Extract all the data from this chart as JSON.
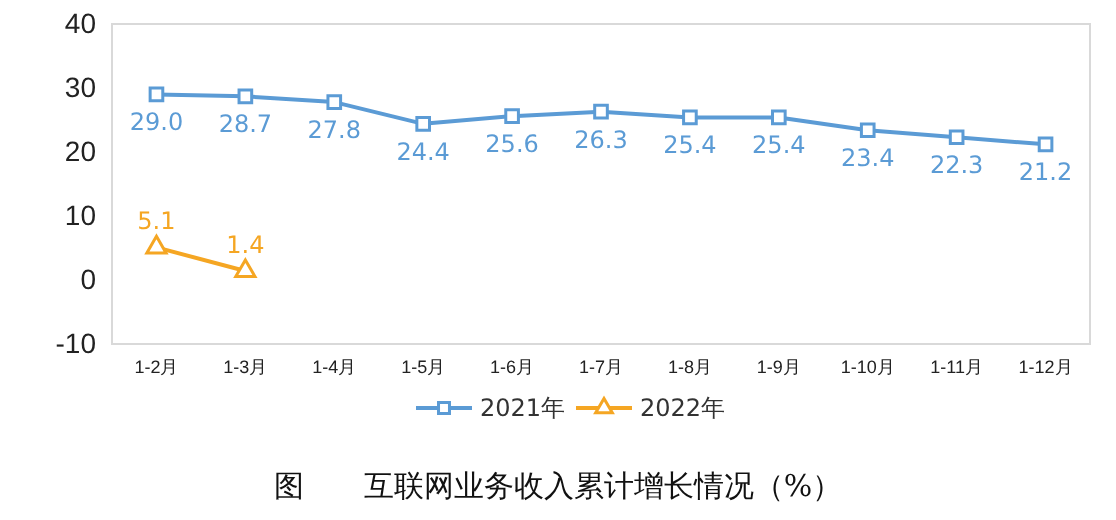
{
  "chart_data": {
    "type": "line",
    "title": "图　　互联网业务收入累计增长情况（%）",
    "categories": [
      "1-2月",
      "1-3月",
      "1-4月",
      "1-5月",
      "1-6月",
      "1-7月",
      "1-8月",
      "1-9月",
      "1-10月",
      "1-11月",
      "1-12月"
    ],
    "series": [
      {
        "name": "2021年",
        "color": "#5b9bd5",
        "marker": "square",
        "values": [
          29.0,
          28.7,
          27.8,
          24.4,
          25.6,
          26.3,
          25.4,
          25.4,
          23.4,
          22.3,
          21.2
        ],
        "value_labels": [
          "29.0",
          "28.7",
          "27.8",
          "24.4",
          "25.6",
          "26.3",
          "25.4",
          "25.4",
          "23.4",
          "22.3",
          "21.2"
        ]
      },
      {
        "name": "2022年",
        "color": "#f5a623",
        "marker": "triangle",
        "values": [
          5.1,
          1.4,
          null,
          null,
          null,
          null,
          null,
          null,
          null,
          null,
          null
        ],
        "value_labels": [
          "5.1",
          "1.4",
          null,
          null,
          null,
          null,
          null,
          null,
          null,
          null,
          null
        ]
      }
    ],
    "ylim": [
      -10,
      40
    ],
    "yticks": [
      -10,
      0,
      10,
      20,
      30,
      40
    ],
    "grid": false,
    "legend": "bottom",
    "line_style": "solid"
  }
}
